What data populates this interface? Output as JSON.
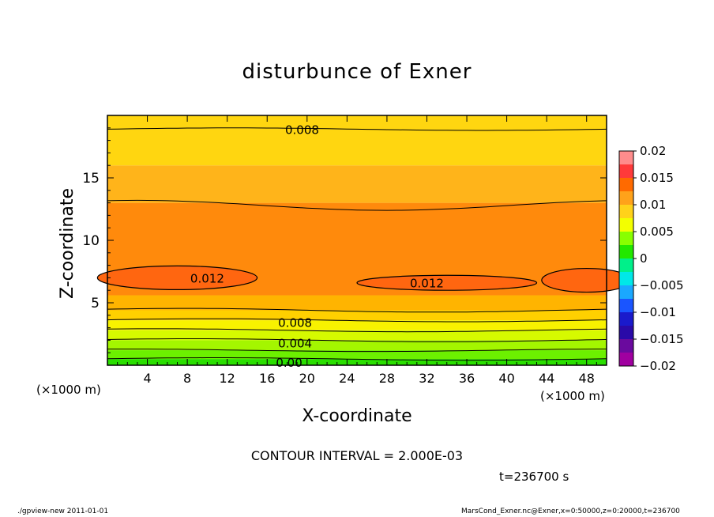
{
  "chart_data": {
    "type": "contour",
    "title": "disturbunce of Exner",
    "xlabel": "X-coordinate",
    "ylabel": "Z-coordinate",
    "x_unit_label": "(×1000 m)",
    "x_unit_label_right": "(×1000 m)",
    "xlim": [
      0,
      50
    ],
    "ylim": [
      0,
      20
    ],
    "xticks": [
      4,
      8,
      12,
      16,
      20,
      24,
      28,
      32,
      36,
      40,
      44,
      48
    ],
    "yticks": [
      5,
      10,
      15
    ],
    "contour_interval_text": "CONTOUR INTERVAL = 2.000E-03",
    "time_text": "t=236700 s",
    "colorbar": {
      "ticks": [
        0.02,
        0.015,
        0.01,
        0.005,
        0,
        -0.005,
        -0.01,
        -0.015,
        -0.02
      ],
      "tick_labels": [
        "0.02",
        "0.015",
        "0.01",
        "0.005",
        "0",
        "−0.005",
        "−0.01",
        "−0.015",
        "−0.02"
      ],
      "colors": [
        "#ff8c8c",
        "#ff3a3a",
        "#ff6a00",
        "#ffa21a",
        "#ffd21a",
        "#f3ff00",
        "#88ff00",
        "#22e800",
        "#00f08a",
        "#00e8e8",
        "#1aa8ff",
        "#1a55ff",
        "#1a1acc",
        "#2a0aa8",
        "#6a0a9e",
        "#a000a0"
      ]
    },
    "contour_labels": [
      {
        "text": "0.008",
        "x": 19.5,
        "z": 18.9
      },
      {
        "text": "0.012",
        "x": 10,
        "z": 7.0
      },
      {
        "text": "0.012",
        "x": 32,
        "z": 6.6
      },
      {
        "text": "0.008",
        "x": 18.8,
        "z": 3.45
      },
      {
        "text": "0.004",
        "x": 18.8,
        "z": 1.8
      },
      {
        "text": "0.00",
        "x": 18.2,
        "z": 0.25
      }
    ],
    "bands": [
      {
        "z": [
          0,
          0.5
        ],
        "value": 0.0,
        "color": "#2adf00"
      },
      {
        "z": [
          0.5,
          1.2
        ],
        "value": 0.002,
        "color": "#6cf000"
      },
      {
        "z": [
          1.2,
          2.0
        ],
        "value": 0.004,
        "color": "#a4f600"
      },
      {
        "z": [
          2.0,
          2.8
        ],
        "value": 0.006,
        "color": "#d6fa00"
      },
      {
        "z": [
          2.8,
          3.6
        ],
        "value": 0.007,
        "color": "#f8f200"
      },
      {
        "z": [
          3.6,
          4.4
        ],
        "value": 0.008,
        "color": "#ffd000"
      },
      {
        "z": [
          4.4,
          5.6
        ],
        "value": 0.009,
        "color": "#ffb400"
      },
      {
        "z": [
          5.6,
          13.0
        ],
        "value": 0.011,
        "color": "#ff8a0c"
      },
      {
        "z": [
          13.0,
          16.0
        ],
        "value": 0.009,
        "color": "#ffb41a"
      },
      {
        "z": [
          16.0,
          20.0
        ],
        "value": 0.008,
        "color": "#ffd610"
      }
    ]
  },
  "footer": {
    "left": "./gpview-new   2011-01-01",
    "right": "MarsCond_Exner.nc@Exner,x=0:50000,z=0:20000,t=236700"
  }
}
